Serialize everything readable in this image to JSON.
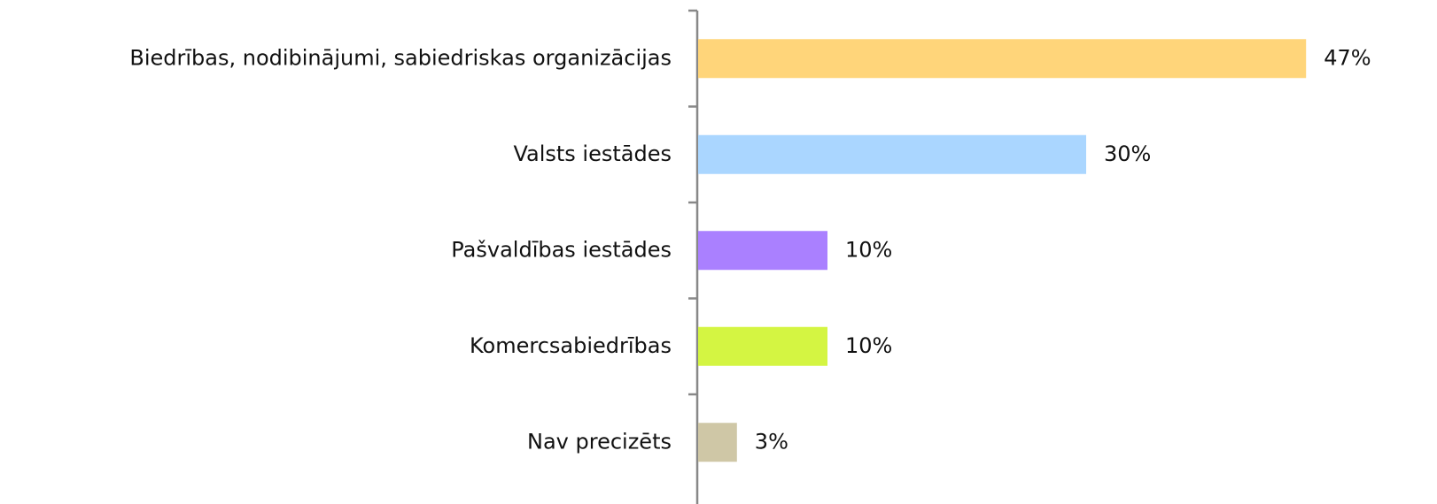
{
  "chart_data": {
    "type": "bar",
    "orientation": "horizontal",
    "categories": [
      "Biedrības, nodibinājumi, sabiedriskas organizācijas",
      "Valsts iestādes",
      "Pašvaldības iestādes",
      "Komercsabiedrības",
      "Nav precizēts"
    ],
    "values": [
      47,
      30,
      10,
      10,
      3
    ],
    "value_labels": [
      "47%",
      "30%",
      "10%",
      "10%",
      "3%"
    ],
    "colors": [
      "#ffd57a",
      "#aad6ff",
      "#aa80ff",
      "#d4f542",
      "#cfc7a6"
    ]
  }
}
